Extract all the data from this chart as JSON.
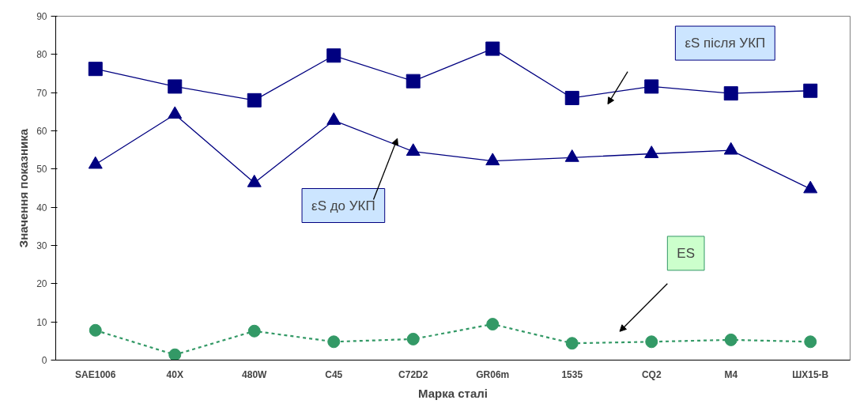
{
  "chart_data": {
    "type": "line",
    "xlabel": "Марка сталі",
    "ylabel": "Значення показника",
    "categories": [
      "SAE1006",
      "40X",
      "480W",
      "C45",
      "C72D2",
      "GR06m",
      "1535",
      "CQ2",
      "M4",
      "ШХ15-В"
    ],
    "ylim": [
      0,
      90
    ],
    "yticks": [
      0,
      10,
      20,
      30,
      40,
      50,
      60,
      70,
      80,
      90
    ],
    "grid": false,
    "legend": false,
    "series": [
      {
        "name": "εS після УКП",
        "color": "#000080",
        "marker": "square",
        "line_style": "solid",
        "values": [
          76.2,
          71.6,
          68,
          79.7,
          73,
          81.5,
          68.6,
          71.6,
          69.8,
          70.5
        ]
      },
      {
        "name": "εS до УКП",
        "color": "#000080",
        "marker": "triangle",
        "line_style": "solid",
        "values": [
          51.2,
          64.3,
          46.4,
          62.7,
          54.6,
          52.1,
          53,
          54,
          54.9,
          44.8
        ]
      },
      {
        "name": "ES",
        "color": "#339966",
        "marker": "circle",
        "line_style": "dashed",
        "values": [
          7.8,
          1.4,
          7.6,
          4.8,
          5.5,
          9.4,
          4.4,
          4.8,
          5.3,
          4.8
        ]
      }
    ]
  }
}
